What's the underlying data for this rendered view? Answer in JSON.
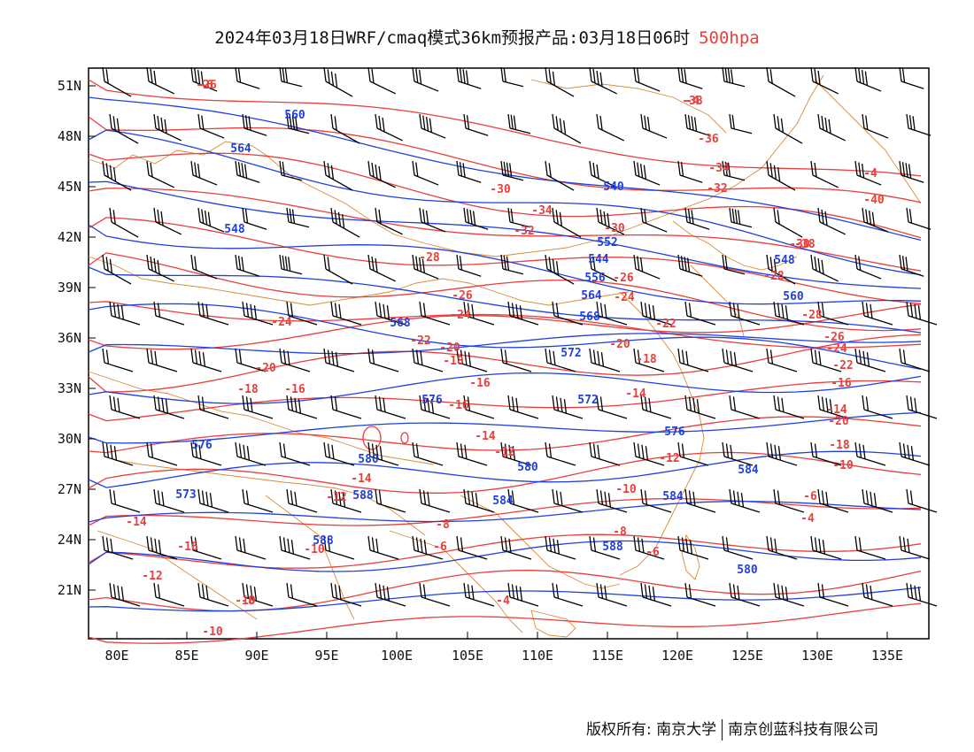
{
  "title": {
    "text": "2024年03月18日WRF/cmaq模式36km预报产品:03月18日06时",
    "level": "500hpa"
  },
  "footer": {
    "copyright": "版权所有: 南京大学",
    "company": "南京创蓝科技有限公司"
  },
  "colors": {
    "temperature": "#e8403d",
    "geopotential": "#2040e0",
    "border": "#d98a3a",
    "barb": "#000000"
  },
  "axes": {
    "lat_labels": [
      "51N",
      "48N",
      "45N",
      "42N",
      "39N",
      "36N",
      "33N",
      "30N",
      "27N",
      "24N",
      "21N"
    ],
    "lon_labels": [
      "80E",
      "85E",
      "90E",
      "95E",
      "100E",
      "105E",
      "110E",
      "115E",
      "120E",
      "125E",
      "130E",
      "135E"
    ]
  },
  "map": {
    "temperature_labels": [
      "-26",
      "-38",
      "-36",
      "-34",
      "-32",
      "-30",
      "-34",
      "-32",
      "-30",
      "-28",
      "-30",
      "-28",
      "-26",
      "-26",
      "-24",
      "-24",
      "-24",
      "-22",
      "-22",
      "-20",
      "-20",
      "-20",
      "-18",
      "-18",
      "-18",
      "-16",
      "-16",
      "-16",
      "-16",
      "-14",
      "-14",
      "-14",
      "-14",
      "-12",
      "-12",
      "-12",
      "-10",
      "-10",
      "-10",
      "-10",
      "-8",
      "-8",
      "-6",
      "-6",
      "-6",
      "-4",
      "-4",
      "-4",
      "-40",
      "-38",
      "-28",
      "-26",
      "-24",
      "-22",
      "-20",
      "-18",
      "-16",
      "-14",
      "-12",
      "-10",
      "-8",
      "-6",
      "-4"
    ],
    "height_labels": [
      "560",
      "564",
      "540",
      "548",
      "552",
      "544",
      "548",
      "556",
      "560",
      "564",
      "568",
      "568",
      "572",
      "572",
      "576",
      "576",
      "576",
      "580",
      "580",
      "584",
      "584",
      "588",
      "588",
      "588",
      "584",
      "580",
      "573"
    ]
  }
}
